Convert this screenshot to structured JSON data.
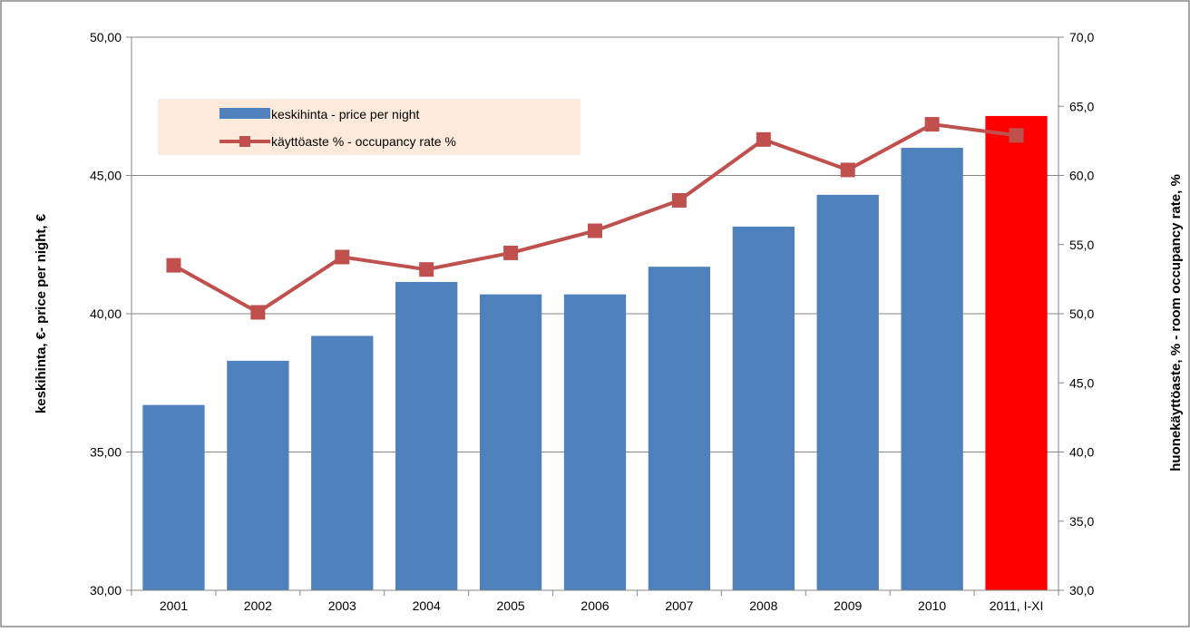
{
  "chart_data": {
    "type": "bar",
    "categories": [
      "2001",
      "2002",
      "2003",
      "2004",
      "2005",
      "2006",
      "2007",
      "2008",
      "2009",
      "2010",
      "2011, I-XI"
    ],
    "series": [
      {
        "name": "keskihinta  - price per night",
        "type": "bar",
        "axis": "left",
        "values": [
          36.7,
          38.3,
          39.2,
          41.15,
          40.7,
          40.7,
          41.7,
          43.15,
          44.3,
          46.0,
          47.15
        ],
        "color": "#4F81BD",
        "highlight_last_color": "#FF0000"
      },
      {
        "name": "käyttöaste % - occupancy rate %",
        "type": "line",
        "axis": "right",
        "values": [
          53.5,
          50.1,
          54.1,
          53.2,
          54.4,
          56.0,
          58.2,
          62.6,
          60.4,
          63.7,
          62.9
        ],
        "color": "#C0504D"
      }
    ],
    "y_left": {
      "label": "keskihinta, €- price per night, €",
      "ylim": [
        30,
        50
      ],
      "ticks": [
        "30,00",
        "35,00",
        "40,00",
        "45,00",
        "50,00"
      ]
    },
    "y_right": {
      "label": "huonekäyttöaste, % - room occupancy rate, %",
      "ylim": [
        30,
        70
      ],
      "ticks": [
        "30,0",
        "35,0",
        "40,0",
        "45,0",
        "50,0",
        "55,0",
        "60,0",
        "65,0",
        "70,0"
      ]
    },
    "grid": true,
    "legend_position": "top-left",
    "legend_background": "#FDEADA"
  }
}
